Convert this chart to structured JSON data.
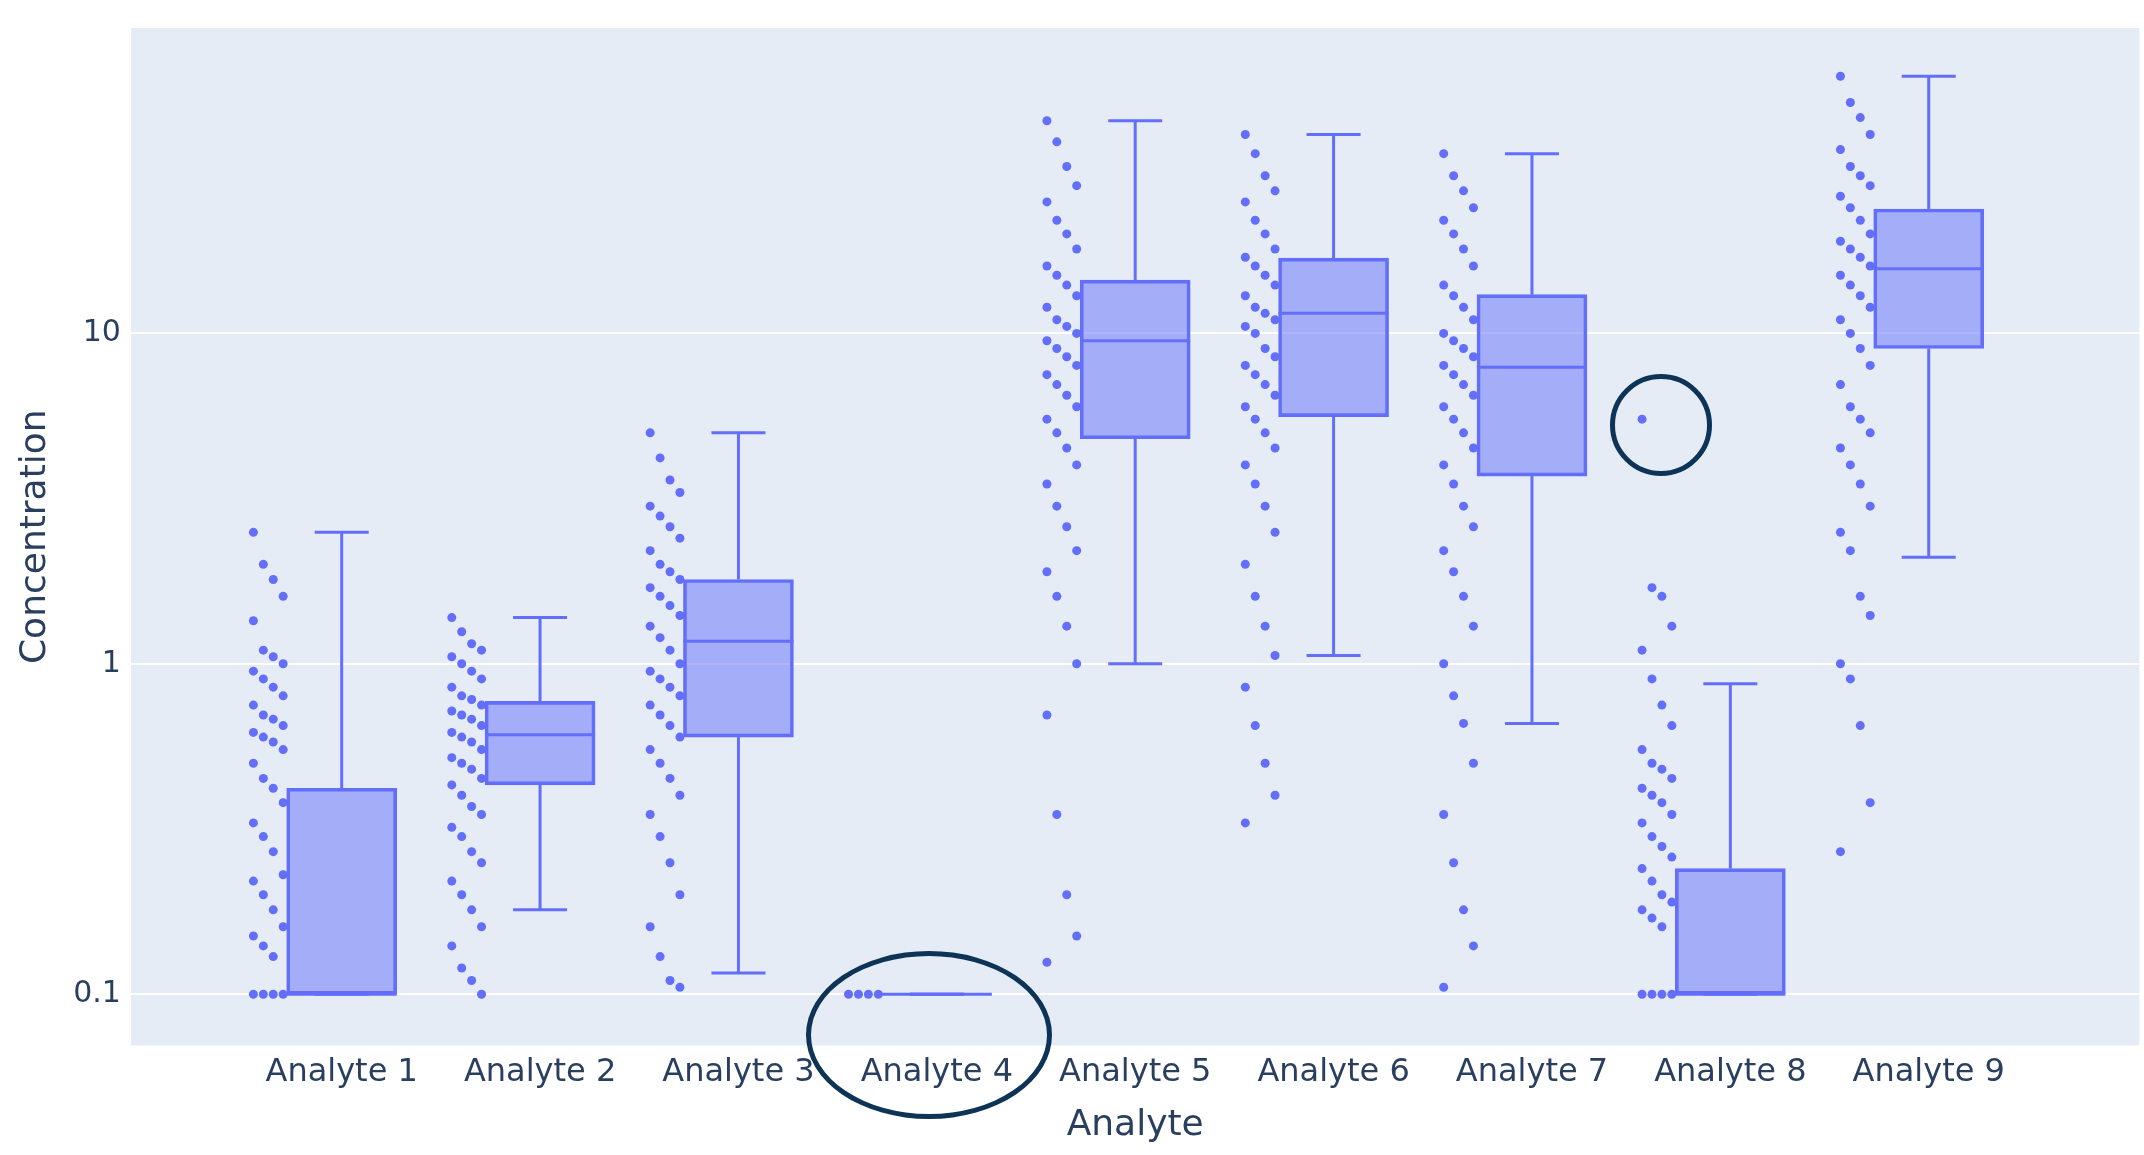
{
  "chart_data": {
    "type": "box",
    "xlabel": "Analyte",
    "ylabel": "Concentration",
    "categories": [
      "Analyte 1",
      "Analyte 2",
      "Analyte 3",
      "Analyte 4",
      "Analyte 5",
      "Analyte 6",
      "Analyte 7",
      "Analyte 8",
      "Analyte 9"
    ],
    "log": true,
    "ylim": [
      0.07,
      84
    ],
    "yticks": [
      0.1,
      1,
      10
    ],
    "grid": "y",
    "marker": "circle",
    "series": [
      {
        "type": "box",
        "color": "#636efa",
        "boxes": [
          {
            "low": 0.1,
            "q1": 0.1,
            "median": 0.1,
            "q3": 0.42,
            "high": 2.5
          },
          {
            "low": 0.18,
            "q1": 0.43,
            "median": 0.61,
            "q3": 0.77,
            "high": 1.38
          },
          {
            "low": 0.116,
            "q1": 0.6,
            "median": 1.17,
            "q3": 1.8,
            "high": 5
          },
          {
            "low": 0.1,
            "q1": 0.1,
            "median": 0.1,
            "q3": 0.1,
            "high": 0.1
          },
          {
            "low": 1,
            "q1": 4.8,
            "median": 9.5,
            "q3": 14.5,
            "high": 44
          },
          {
            "low": 1.06,
            "q1": 5.6,
            "median": 11.5,
            "q3": 16.9,
            "high": 40
          },
          {
            "low": 0.66,
            "q1": 3.7,
            "median": 7.9,
            "q3": 13.1,
            "high": 35
          },
          {
            "low": 0.1,
            "q1": 0.1,
            "median": 0.1,
            "q3": 0.24,
            "high": 0.87
          },
          {
            "low": 2.1,
            "q1": 9,
            "median": 15.7,
            "q3": 23.8,
            "high": 60
          }
        ]
      },
      {
        "type": "scatter",
        "color": "#636efa",
        "x": [
          "Analyte 1",
          "Analyte 1",
          "Analyte 1",
          "Analyte 1",
          "Analyte 1",
          "Analyte 1",
          "Analyte 1",
          "Analyte 1",
          "Analyte 1",
          "Analyte 1",
          "Analyte 1",
          "Analyte 1",
          "Analyte 1",
          "Analyte 1",
          "Analyte 1",
          "Analyte 1",
          "Analyte 1",
          "Analyte 1",
          "Analyte 1",
          "Analyte 1",
          "Analyte 1",
          "Analyte 1",
          "Analyte 1",
          "Analyte 1",
          "Analyte 1",
          "Analyte 1",
          "Analyte 1",
          "Analyte 1",
          "Analyte 1",
          "Analyte 1",
          "Analyte 1",
          "Analyte 1",
          "Analyte 1",
          "Analyte 1",
          "Analyte 1",
          "Analyte 1",
          "Analyte 1",
          "Analyte 1",
          "Analyte 1"
        ],
        "values": [
          2.5,
          2.0,
          1.8,
          1.6,
          1.35,
          1.1,
          1.05,
          1.0,
          0.95,
          0.9,
          0.85,
          0.8,
          0.75,
          0.7,
          0.68,
          0.65,
          0.62,
          0.6,
          0.58,
          0.55,
          0.5,
          0.45,
          0.42,
          0.38,
          0.33,
          0.3,
          0.27,
          0.23,
          0.22,
          0.2,
          0.18,
          0.16,
          0.15,
          0.14,
          0.13,
          0.1,
          0.1,
          0.1,
          0.1
        ]
      },
      {
        "type": "scatter",
        "color": "#636efa",
        "x": [
          "Analyte 2",
          "Analyte 2",
          "Analyte 2",
          "Analyte 2",
          "Analyte 2",
          "Analyte 2",
          "Analyte 2",
          "Analyte 2",
          "Analyte 2",
          "Analyte 2",
          "Analyte 2",
          "Analyte 2",
          "Analyte 2",
          "Analyte 2",
          "Analyte 2",
          "Analyte 2",
          "Analyte 2",
          "Analyte 2",
          "Analyte 2",
          "Analyte 2",
          "Analyte 2",
          "Analyte 2",
          "Analyte 2",
          "Analyte 2",
          "Analyte 2",
          "Analyte 2",
          "Analyte 2",
          "Analyte 2",
          "Analyte 2",
          "Analyte 2",
          "Analyte 2",
          "Analyte 2",
          "Analyte 2",
          "Analyte 2",
          "Analyte 2",
          "Analyte 2",
          "Analyte 2",
          "Analyte 2",
          "Analyte 2",
          "Analyte 2"
        ],
        "values": [
          1.38,
          1.25,
          1.15,
          1.1,
          1.05,
          1.0,
          0.95,
          0.9,
          0.85,
          0.8,
          0.78,
          0.75,
          0.72,
          0.7,
          0.68,
          0.65,
          0.62,
          0.6,
          0.58,
          0.55,
          0.52,
          0.5,
          0.48,
          0.45,
          0.43,
          0.4,
          0.37,
          0.35,
          0.32,
          0.3,
          0.27,
          0.25,
          0.22,
          0.2,
          0.18,
          0.16,
          0.14,
          0.12,
          0.11,
          0.1
        ]
      },
      {
        "type": "scatter",
        "color": "#636efa",
        "x": [
          "Analyte 3",
          "Analyte 3",
          "Analyte 3",
          "Analyte 3",
          "Analyte 3",
          "Analyte 3",
          "Analyte 3",
          "Analyte 3",
          "Analyte 3",
          "Analyte 3",
          "Analyte 3",
          "Analyte 3",
          "Analyte 3",
          "Analyte 3",
          "Analyte 3",
          "Analyte 3",
          "Analyte 3",
          "Analyte 3",
          "Analyte 3",
          "Analyte 3",
          "Analyte 3",
          "Analyte 3",
          "Analyte 3",
          "Analyte 3",
          "Analyte 3",
          "Analyte 3",
          "Analyte 3",
          "Analyte 3",
          "Analyte 3",
          "Analyte 3",
          "Analyte 3",
          "Analyte 3",
          "Analyte 3",
          "Analyte 3",
          "Analyte 3",
          "Analyte 3",
          "Analyte 3",
          "Analyte 3",
          "Analyte 3",
          "Analyte 3"
        ],
        "values": [
          5.0,
          4.2,
          3.6,
          3.3,
          3.0,
          2.8,
          2.6,
          2.4,
          2.2,
          2.0,
          1.9,
          1.8,
          1.7,
          1.6,
          1.5,
          1.4,
          1.3,
          1.2,
          1.1,
          1.0,
          0.95,
          0.9,
          0.85,
          0.8,
          0.75,
          0.7,
          0.65,
          0.6,
          0.55,
          0.5,
          0.45,
          0.4,
          0.35,
          0.3,
          0.25,
          0.2,
          0.16,
          0.13,
          0.11,
          0.105
        ]
      },
      {
        "type": "scatter",
        "color": "#636efa",
        "x": [
          "Analyte 4",
          "Analyte 4",
          "Analyte 4",
          "Analyte 4"
        ],
        "values": [
          0.1,
          0.1,
          0.1,
          0.1
        ]
      },
      {
        "type": "scatter",
        "color": "#636efa",
        "x": [
          "Analyte 5",
          "Analyte 5",
          "Analyte 5",
          "Analyte 5",
          "Analyte 5",
          "Analyte 5",
          "Analyte 5",
          "Analyte 5",
          "Analyte 5",
          "Analyte 5",
          "Analyte 5",
          "Analyte 5",
          "Analyte 5",
          "Analyte 5",
          "Analyte 5",
          "Analyte 5",
          "Analyte 5",
          "Analyte 5",
          "Analyte 5",
          "Analyte 5",
          "Analyte 5",
          "Analyte 5",
          "Analyte 5",
          "Analyte 5",
          "Analyte 5",
          "Analyte 5",
          "Analyte 5",
          "Analyte 5",
          "Analyte 5",
          "Analyte 5",
          "Analyte 5",
          "Analyte 5",
          "Analyte 5",
          "Analyte 5",
          "Analyte 5",
          "Analyte 5",
          "Analyte 5",
          "Analyte 5",
          "Analyte 5",
          "Analyte 5",
          "Analyte 5"
        ],
        "values": [
          44,
          38,
          32,
          28,
          25,
          22,
          20,
          18,
          16,
          15,
          14,
          13,
          12,
          11,
          10.5,
          10,
          9.5,
          9,
          8.5,
          8,
          7.5,
          7,
          6.5,
          6,
          5.5,
          5,
          4.5,
          4,
          3.5,
          3,
          2.6,
          2.2,
          1.9,
          1.6,
          1.3,
          1.0,
          0.7,
          0.35,
          0.2,
          0.15,
          0.125
        ]
      },
      {
        "type": "scatter",
        "color": "#636efa",
        "x": [
          "Analyte 6",
          "Analyte 6",
          "Analyte 6",
          "Analyte 6",
          "Analyte 6",
          "Analyte 6",
          "Analyte 6",
          "Analyte 6",
          "Analyte 6",
          "Analyte 6",
          "Analyte 6",
          "Analyte 6",
          "Analyte 6",
          "Analyte 6",
          "Analyte 6",
          "Analyte 6",
          "Analyte 6",
          "Analyte 6",
          "Analyte 6",
          "Analyte 6",
          "Analyte 6",
          "Analyte 6",
          "Analyte 6",
          "Analyte 6",
          "Analyte 6",
          "Analyte 6",
          "Analyte 6",
          "Analyte 6",
          "Analyte 6",
          "Analyte 6",
          "Analyte 6",
          "Analyte 6",
          "Analyte 6",
          "Analyte 6",
          "Analyte 6",
          "Analyte 6",
          "Analyte 6",
          "Analyte 6",
          "Analyte 6",
          "Analyte 6",
          "Analyte 6"
        ],
        "values": [
          40,
          35,
          30,
          27,
          25,
          22,
          20,
          18,
          17,
          16,
          15,
          14,
          13,
          12,
          11.5,
          11,
          10.5,
          10,
          9,
          8.5,
          8,
          7.5,
          7,
          6.5,
          6,
          5.5,
          5,
          4.5,
          4,
          3.5,
          3,
          2.5,
          2,
          1.6,
          1.3,
          1.06,
          0.85,
          0.65,
          0.5,
          0.4,
          0.33
        ]
      },
      {
        "type": "scatter",
        "color": "#636efa",
        "x": [
          "Analyte 7",
          "Analyte 7",
          "Analyte 7",
          "Analyte 7",
          "Analyte 7",
          "Analyte 7",
          "Analyte 7",
          "Analyte 7",
          "Analyte 7",
          "Analyte 7",
          "Analyte 7",
          "Analyte 7",
          "Analyte 7",
          "Analyte 7",
          "Analyte 7",
          "Analyte 7",
          "Analyte 7",
          "Analyte 7",
          "Analyte 7",
          "Analyte 7",
          "Analyte 7",
          "Analyte 7",
          "Analyte 7",
          "Analyte 7",
          "Analyte 7",
          "Analyte 7",
          "Analyte 7",
          "Analyte 7",
          "Analyte 7",
          "Analyte 7",
          "Analyte 7",
          "Analyte 7",
          "Analyte 7",
          "Analyte 7",
          "Analyte 7",
          "Analyte 7",
          "Analyte 7",
          "Analyte 7",
          "Analyte 7",
          "Analyte 7",
          "Analyte 7"
        ],
        "values": [
          35,
          30,
          27,
          24,
          22,
          20,
          18,
          16,
          14,
          13,
          12,
          11,
          10,
          9.5,
          9,
          8.5,
          8,
          7.5,
          7,
          6.5,
          6,
          5.5,
          5,
          4.5,
          4,
          3.5,
          3,
          2.6,
          2.2,
          1.9,
          1.6,
          1.3,
          1.0,
          0.8,
          0.66,
          0.5,
          0.35,
          0.25,
          0.18,
          0.14,
          0.105
        ]
      },
      {
        "type": "scatter",
        "color": "#636efa",
        "x": [
          "Analyte 8",
          "Analyte 8",
          "Analyte 8",
          "Analyte 8",
          "Analyte 8",
          "Analyte 8",
          "Analyte 8",
          "Analyte 8",
          "Analyte 8",
          "Analyte 8",
          "Analyte 8",
          "Analyte 8",
          "Analyte 8",
          "Analyte 8",
          "Analyte 8",
          "Analyte 8",
          "Analyte 8",
          "Analyte 8",
          "Analyte 8",
          "Analyte 8",
          "Analyte 8",
          "Analyte 8",
          "Analyte 8",
          "Analyte 8",
          "Analyte 8",
          "Analyte 8",
          "Analyte 8",
          "Analyte 8",
          "Analyte 8",
          "Analyte 8",
          "Analyte 8"
        ],
        "values": [
          5.5,
          1.7,
          1.6,
          1.3,
          1.1,
          0.9,
          0.75,
          0.65,
          0.55,
          0.5,
          0.48,
          0.45,
          0.42,
          0.4,
          0.38,
          0.35,
          0.33,
          0.3,
          0.28,
          0.26,
          0.24,
          0.22,
          0.2,
          0.19,
          0.18,
          0.17,
          0.16,
          0.1,
          0.1,
          0.1,
          0.1
        ]
      },
      {
        "type": "scatter",
        "color": "#636efa",
        "x": [
          "Analyte 9",
          "Analyte 9",
          "Analyte 9",
          "Analyte 9",
          "Analyte 9",
          "Analyte 9",
          "Analyte 9",
          "Analyte 9",
          "Analyte 9",
          "Analyte 9",
          "Analyte 9",
          "Analyte 9",
          "Analyte 9",
          "Analyte 9",
          "Analyte 9",
          "Analyte 9",
          "Analyte 9",
          "Analyte 9",
          "Analyte 9",
          "Analyte 9",
          "Analyte 9",
          "Analyte 9",
          "Analyte 9",
          "Analyte 9",
          "Analyte 9",
          "Analyte 9",
          "Analyte 9",
          "Analyte 9",
          "Analyte 9",
          "Analyte 9",
          "Analyte 9",
          "Analyte 9",
          "Analyte 9",
          "Analyte 9",
          "Analyte 9",
          "Analyte 9",
          "Analyte 9",
          "Analyte 9",
          "Analyte 9",
          "Analyte 9",
          "Analyte 9"
        ],
        "values": [
          60,
          50,
          45,
          40,
          36,
          32,
          30,
          28,
          26,
          24,
          22,
          20,
          19,
          18,
          17,
          16,
          15,
          14,
          13,
          12,
          11,
          10,
          9,
          8,
          7,
          6,
          5.5,
          5,
          4.5,
          4,
          3.5,
          3,
          2.5,
          2.2,
          1.6,
          1.4,
          1.0,
          0.9,
          0.65,
          0.38,
          0.27
        ]
      }
    ]
  }
}
